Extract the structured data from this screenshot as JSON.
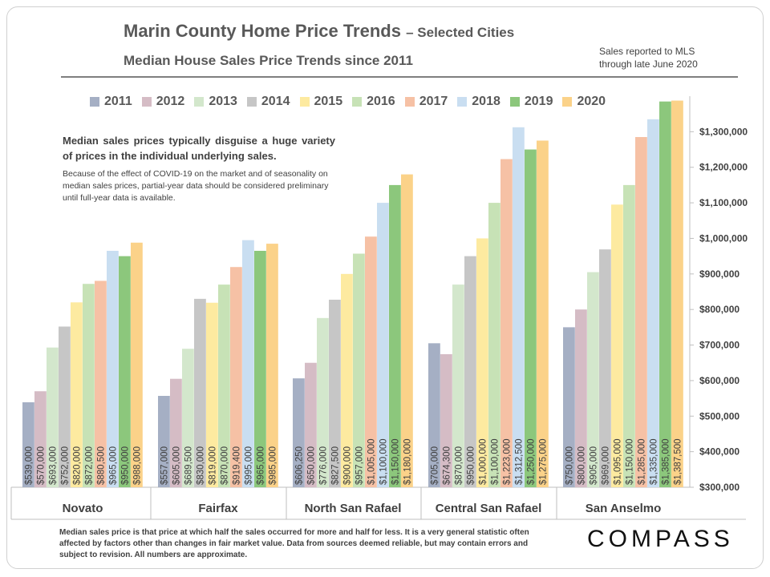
{
  "title": "Marin County Home Price Trends",
  "title_suffix": "– Selected Cities",
  "subtitle": "Median House Sales Price Trends since 2011",
  "note_top_line1": "Sales reported to MLS",
  "note_top_line2": "through late June 2020",
  "annotation_main": "Median sales prices typically disguise a huge variety of prices in the individual underlying sales.",
  "annotation_sub": "Because of the effect of COVID-19 on the market and of seasonality on median sales prices, partial-year data should be considered preliminary until full-year data is available.",
  "footnote": "Median sales price is that price at which half the sales occurred for more and half for less. It is a very general statistic often affected by factors other than changes in fair market value. Data from sources deemed reliable, but may contain errors and subject to revision. All numbers are approximate.",
  "logo": "COMPASS",
  "chart_data": {
    "type": "bar",
    "title": "Median House Sales Price Trends since 2011",
    "categories": [
      "Novato",
      "Fairfax",
      "North San Rafael",
      "Central San Rafael",
      "San Anselmo"
    ],
    "ylim": [
      300000,
      1400000
    ],
    "yticks": [
      "$300,000",
      "$400,000",
      "$500,000",
      "$600,000",
      "$700,000",
      "$800,000",
      "$900,000",
      "$1,000,000",
      "$1,100,000",
      "$1,200,000",
      "$1,300,000"
    ],
    "ytick_values": [
      300000,
      400000,
      500000,
      600000,
      700000,
      800000,
      900000,
      1000000,
      1100000,
      1200000,
      1300000
    ],
    "colors": [
      "#a5afc4",
      "#d5bcc5",
      "#d3e7cc",
      "#c6c6c6",
      "#fdeaa0",
      "#c7e2b6",
      "#f6c1a5",
      "#c9def1",
      "#8cc77c",
      "#fbd289"
    ],
    "series": [
      {
        "name": "2011",
        "values": [
          539000,
          557000,
          606250,
          705000,
          750000
        ],
        "labels": [
          "$539,000",
          "$557,000",
          "$606,250",
          "$705,000",
          "$750,000"
        ]
      },
      {
        "name": "2012",
        "values": [
          570000,
          605000,
          650000,
          674300,
          800000
        ],
        "labels": [
          "$570,000",
          "$605,000",
          "$650,000",
          "$674,300",
          "$800,000"
        ]
      },
      {
        "name": "2013",
        "values": [
          693000,
          689500,
          776000,
          870000,
          905000
        ],
        "labels": [
          "$693,000",
          "$689,500",
          "$776,000",
          "$870,000",
          "$905,000"
        ]
      },
      {
        "name": "2014",
        "values": [
          752000,
          830000,
          827500,
          950000,
          969000
        ],
        "labels": [
          "$752,000",
          "$830,000",
          "$827,500",
          "$950,000",
          "$969,000"
        ]
      },
      {
        "name": "2015",
        "values": [
          820000,
          819000,
          900000,
          1000000,
          1095000
        ],
        "labels": [
          "$820,000",
          "$819,000",
          "$900,000",
          "$1,000,000",
          "$1,095,000"
        ]
      },
      {
        "name": "2016",
        "values": [
          872000,
          870000,
          957000,
          1100000,
          1150000
        ],
        "labels": [
          "$872,000",
          "$870,000",
          "$957,000",
          "$1,100,000",
          "$1,150,000"
        ]
      },
      {
        "name": "2017",
        "values": [
          880500,
          919400,
          1005000,
          1223000,
          1285000
        ],
        "labels": [
          "$880,500",
          "$919,400",
          "$1,005,000",
          "$1,223,000",
          "$1,285,000"
        ]
      },
      {
        "name": "2018",
        "values": [
          965000,
          995000,
          1100000,
          1312500,
          1335000
        ],
        "labels": [
          "$965,000",
          "$995,000",
          "$1,100,000",
          "$1,312,500",
          "$1,335,000"
        ]
      },
      {
        "name": "2019",
        "values": [
          950000,
          965000,
          1150000,
          1250000,
          1385000
        ],
        "labels": [
          "$950,000",
          "$965,000",
          "$1,150,000",
          "$1,250,000",
          "$1,385,000"
        ]
      },
      {
        "name": "2020",
        "values": [
          988000,
          985000,
          1180000,
          1275000,
          1387500
        ],
        "labels": [
          "$988,000",
          "$985,000",
          "$1,180,000",
          "$1,275,000",
          "$1,387,500"
        ]
      }
    ]
  }
}
